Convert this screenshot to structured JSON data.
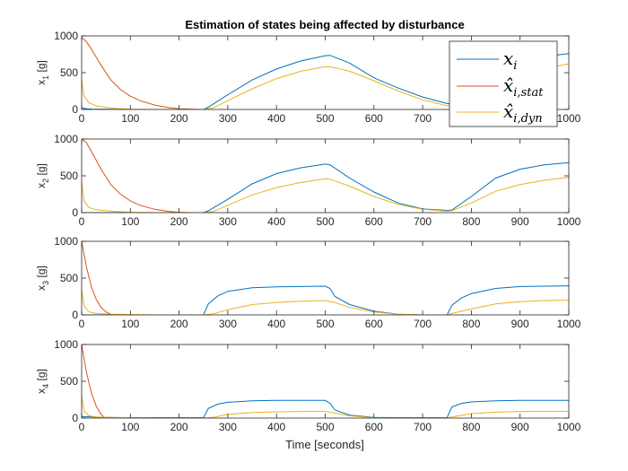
{
  "chart_data": {
    "type": "line",
    "title": "Estimation of states being affected by disturbance",
    "xlabel": "Time [seconds]",
    "xlim": [
      0,
      1000
    ],
    "xticks": [
      "0",
      "100",
      "200",
      "300",
      "400",
      "500",
      "600",
      "700",
      "800",
      "900",
      "1000"
    ],
    "colors": {
      "x_i": "#0072BD",
      "x_hat_stat": "#D95319",
      "x_hat_dyn": "#EDB120"
    },
    "legend": {
      "placement": "top-right of first subplot",
      "entries": [
        {
          "key": "x_i",
          "label": "x_i"
        },
        {
          "key": "x_hat_stat",
          "label": "x̂_i,stat"
        },
        {
          "key": "x_hat_dyn",
          "label": "x̂_i,dyn"
        }
      ]
    },
    "subplots": [
      {
        "ylabel": "x_1 [g]",
        "ylim": [
          0,
          1000
        ],
        "yticks": [
          "0",
          "500",
          "1000"
        ],
        "series": [
          {
            "key": "x_i",
            "x": [
              0,
              10,
              20,
              50,
              100,
              150,
              200,
              250,
              260,
              300,
              350,
              400,
              450,
              500,
              510,
              550,
              600,
              650,
              700,
              750,
              800,
              850,
              900,
              950,
              1000
            ],
            "y": [
              25,
              10,
              5,
              2,
              0,
              0,
              0,
              0,
              30,
              200,
              400,
              550,
              660,
              730,
              735,
              630,
              430,
              290,
              170,
              80,
              30,
              140,
              600,
              720,
              760
            ]
          },
          {
            "key": "x_hat_stat",
            "x": [
              0,
              10,
              20,
              40,
              60,
              80,
              100,
              120,
              150,
              180,
              200,
              230,
              250
            ],
            "y": [
              980,
              920,
              820,
              600,
              400,
              270,
              180,
              120,
              60,
              25,
              10,
              3,
              0
            ]
          },
          {
            "key": "x_hat_dyn",
            "x": [
              0,
              5,
              15,
              30,
              60,
              100,
              150,
              200,
              250,
              270,
              300,
              350,
              400,
              450,
              500,
              510,
              550,
              600,
              650,
              700,
              750,
              800,
              850,
              900,
              950,
              1000
            ],
            "y": [
              400,
              180,
              90,
              50,
              20,
              5,
              0,
              0,
              0,
              20,
              120,
              280,
              420,
              520,
              580,
              580,
              520,
              390,
              250,
              130,
              50,
              10,
              110,
              440,
              560,
              620
            ]
          }
        ]
      },
      {
        "ylabel": "x_2 [g]",
        "ylim": [
          0,
          1000
        ],
        "yticks": [
          "0",
          "500",
          "1000"
        ],
        "series": [
          {
            "key": "x_i",
            "x": [
              0,
              50,
              100,
              150,
              200,
              250,
              260,
              300,
              350,
              400,
              450,
              500,
              510,
              550,
              600,
              650,
              700,
              750,
              760,
              800,
              850,
              900,
              950,
              1000
            ],
            "y": [
              0,
              0,
              0,
              0,
              0,
              0,
              25,
              180,
              390,
              530,
              610,
              660,
              650,
              470,
              280,
              130,
              50,
              30,
              35,
              220,
              470,
              590,
              650,
              680
            ]
          },
          {
            "key": "x_hat_stat",
            "x": [
              0,
              10,
              20,
              40,
              60,
              80,
              100,
              120,
              150,
              180,
              200,
              230,
              250
            ],
            "y": [
              1000,
              950,
              830,
              590,
              380,
              250,
              160,
              100,
              45,
              15,
              5,
              0,
              0
            ]
          },
          {
            "key": "x_hat_dyn",
            "x": [
              0,
              5,
              15,
              30,
              60,
              100,
              150,
              200,
              250,
              270,
              300,
              350,
              400,
              450,
              500,
              510,
              550,
              600,
              650,
              700,
              750,
              760,
              800,
              850,
              900,
              950,
              1000
            ],
            "y": [
              420,
              160,
              70,
              40,
              20,
              5,
              0,
              0,
              0,
              15,
              100,
              240,
              340,
              410,
              460,
              455,
              360,
              220,
              110,
              45,
              20,
              25,
              130,
              290,
              380,
              440,
              480
            ]
          }
        ]
      },
      {
        "ylabel": "x_3 [g]",
        "ylim": [
          0,
          1000
        ],
        "yticks": [
          "0",
          "500",
          "1000"
        ],
        "series": [
          {
            "key": "x_i",
            "x": [
              0,
              50,
              100,
              150,
              200,
              250,
              260,
              280,
              300,
              350,
              400,
              450,
              500,
              510,
              520,
              550,
              600,
              650,
              700,
              750,
              760,
              780,
              800,
              850,
              900,
              950,
              1000
            ],
            "y": [
              0,
              0,
              0,
              0,
              0,
              0,
              150,
              260,
              320,
              370,
              380,
              385,
              390,
              360,
              250,
              140,
              50,
              10,
              0,
              0,
              130,
              230,
              290,
              360,
              385,
              390,
              395
            ]
          },
          {
            "key": "x_hat_stat",
            "x": [
              0,
              10,
              20,
              30,
              40,
              50,
              60,
              80,
              100,
              130,
              160,
              200,
              250
            ],
            "y": [
              1000,
              650,
              380,
              210,
              100,
              40,
              10,
              -10,
              -15,
              -10,
              -5,
              0,
              0
            ]
          },
          {
            "key": "x_hat_dyn",
            "x": [
              0,
              5,
              15,
              30,
              60,
              100,
              150,
              200,
              250,
              270,
              300,
              350,
              400,
              450,
              500,
              520,
              550,
              600,
              650,
              700,
              750,
              760,
              800,
              850,
              900,
              950,
              1000
            ],
            "y": [
              350,
              120,
              40,
              20,
              10,
              5,
              0,
              0,
              0,
              15,
              70,
              140,
              170,
              185,
              195,
              170,
              100,
              40,
              10,
              0,
              0,
              20,
              80,
              150,
              180,
              195,
              200
            ]
          }
        ]
      },
      {
        "ylabel": "x_4 [g]",
        "ylim": [
          0,
          1000
        ],
        "yticks": [
          "0",
          "500",
          "1000"
        ],
        "series": [
          {
            "key": "x_i",
            "x": [
              0,
              50,
              100,
              150,
              200,
              250,
              260,
              280,
              300,
              350,
              400,
              450,
              500,
              510,
              520,
              550,
              600,
              650,
              700,
              750,
              760,
              780,
              800,
              850,
              900,
              950,
              1000
            ],
            "y": [
              20,
              10,
              5,
              5,
              5,
              5,
              130,
              190,
              215,
              235,
              240,
              240,
              240,
              200,
              110,
              40,
              10,
              5,
              5,
              5,
              150,
              200,
              220,
              235,
              240,
              240,
              240
            ]
          },
          {
            "key": "x_hat_stat",
            "x": [
              0,
              10,
              20,
              30,
              40,
              50,
              60,
              80,
              100,
              130,
              160,
              200,
              250
            ],
            "y": [
              1000,
              620,
              340,
              160,
              50,
              -10,
              -30,
              -30,
              -20,
              -10,
              -5,
              0,
              0
            ]
          },
          {
            "key": "x_hat_dyn",
            "x": [
              0,
              5,
              15,
              30,
              60,
              100,
              150,
              200,
              250,
              270,
              300,
              350,
              400,
              450,
              500,
              520,
              550,
              600,
              650,
              700,
              750,
              760,
              800,
              850,
              900,
              950,
              1000
            ],
            "y": [
              300,
              100,
              30,
              15,
              10,
              5,
              0,
              0,
              0,
              10,
              50,
              75,
              85,
              90,
              90,
              70,
              30,
              5,
              0,
              0,
              0,
              15,
              60,
              80,
              90,
              90,
              90
            ]
          }
        ]
      }
    ]
  }
}
